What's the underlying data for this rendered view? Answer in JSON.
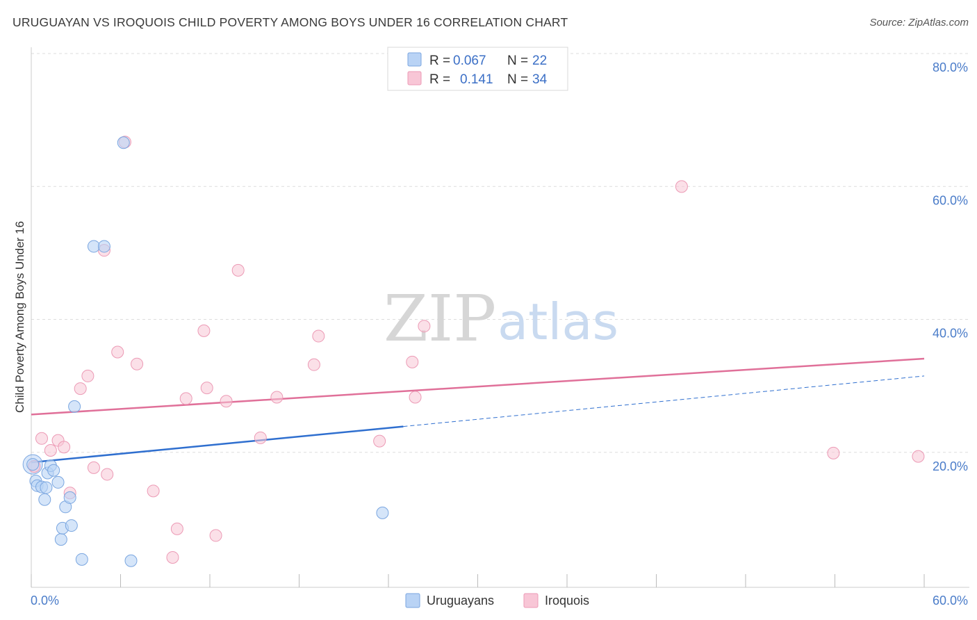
{
  "title": "URUGUAYAN VS IROQUOIS CHILD POVERTY AMONG BOYS UNDER 16 CORRELATION CHART",
  "source": "Source: ZipAtlas.com",
  "watermark": {
    "zip": "ZIP",
    "atlas": "atlas"
  },
  "legend": {
    "rows": [
      {
        "r_label": "R =",
        "r_value": "0.067",
        "n_label": "N =",
        "n_value": "22"
      },
      {
        "r_label": "R =",
        "r_value": "0.141",
        "n_label": "N =",
        "n_value": "34"
      }
    ]
  },
  "bottom_legend": [
    "Uruguayans",
    "Iroquois"
  ],
  "colors": {
    "uruguayans_fill": "#b9d3f5",
    "uruguayans_stroke": "#7aa6e0",
    "uruguayans_line": "#2f6fcf",
    "iroquois_fill": "#f8c6d6",
    "iroquois_stroke": "#ec9ab5",
    "iroquois_line": "#e07099",
    "grid": "#dddddd",
    "tick_label": "#4a7cc9"
  },
  "chart_data": {
    "type": "scatter",
    "title": "URUGUAYAN VS IROQUOIS CHILD POVERTY AMONG BOYS UNDER 16 CORRELATION CHART",
    "xlabel": "",
    "ylabel": "Child Poverty Among Boys Under 16",
    "xlim": [
      0,
      60
    ],
    "ylim": [
      0,
      80
    ],
    "x_tick_labels": [
      "0.0%",
      "60.0%"
    ],
    "y_tick_labels": [
      "20.0%",
      "40.0%",
      "60.0%",
      "80.0%"
    ],
    "y_ticks": [
      20,
      40,
      60,
      80
    ],
    "grid": true,
    "legend_position": "top-center",
    "series": [
      {
        "name": "Uruguayans",
        "r": 0.067,
        "n": 22,
        "trend": {
          "x": [
            0,
            25
          ],
          "y": [
            18.8,
            24.2
          ],
          "dashed_to": [
            60,
            31.8
          ]
        },
        "points": [
          [
            0.1,
            18.5
          ],
          [
            0.3,
            16.0
          ],
          [
            0.4,
            15.3
          ],
          [
            0.7,
            15.1
          ],
          [
            0.9,
            13.2
          ],
          [
            1.0,
            15.0
          ],
          [
            1.1,
            17.2
          ],
          [
            1.3,
            18.3
          ],
          [
            1.5,
            17.6
          ],
          [
            1.8,
            15.8
          ],
          [
            2.0,
            7.2
          ],
          [
            2.1,
            8.9
          ],
          [
            2.3,
            12.1
          ],
          [
            2.6,
            13.5
          ],
          [
            2.7,
            9.3
          ],
          [
            2.9,
            27.2
          ],
          [
            3.4,
            4.2
          ],
          [
            4.2,
            51.3
          ],
          [
            4.9,
            51.3
          ],
          [
            6.2,
            66.9
          ],
          [
            6.7,
            4.0
          ],
          [
            23.6,
            11.2
          ]
        ]
      },
      {
        "name": "Iroquois",
        "r": 0.141,
        "n": 34,
        "trend": {
          "x": [
            0,
            60
          ],
          "y": [
            26.0,
            34.4
          ]
        },
        "points": [
          [
            0.2,
            18.2
          ],
          [
            0.7,
            22.4
          ],
          [
            1.3,
            20.6
          ],
          [
            1.8,
            22.1
          ],
          [
            2.2,
            21.1
          ],
          [
            2.6,
            14.2
          ],
          [
            3.3,
            29.9
          ],
          [
            3.8,
            31.8
          ],
          [
            4.2,
            18.0
          ],
          [
            4.9,
            50.7
          ],
          [
            5.1,
            17.0
          ],
          [
            5.8,
            35.4
          ],
          [
            6.3,
            67.0
          ],
          [
            7.1,
            33.6
          ],
          [
            8.2,
            14.5
          ],
          [
            9.5,
            4.5
          ],
          [
            9.8,
            8.8
          ],
          [
            10.4,
            28.4
          ],
          [
            11.6,
            38.6
          ],
          [
            11.8,
            30.0
          ],
          [
            12.4,
            7.8
          ],
          [
            13.1,
            28.0
          ],
          [
            13.9,
            47.7
          ],
          [
            15.4,
            22.5
          ],
          [
            16.5,
            28.6
          ],
          [
            19.0,
            33.5
          ],
          [
            19.3,
            37.8
          ],
          [
            23.4,
            22.0
          ],
          [
            25.6,
            33.9
          ],
          [
            25.8,
            28.6
          ],
          [
            26.4,
            39.3
          ],
          [
            43.7,
            60.3
          ],
          [
            53.9,
            20.2
          ],
          [
            59.6,
            19.7
          ]
        ]
      }
    ]
  }
}
